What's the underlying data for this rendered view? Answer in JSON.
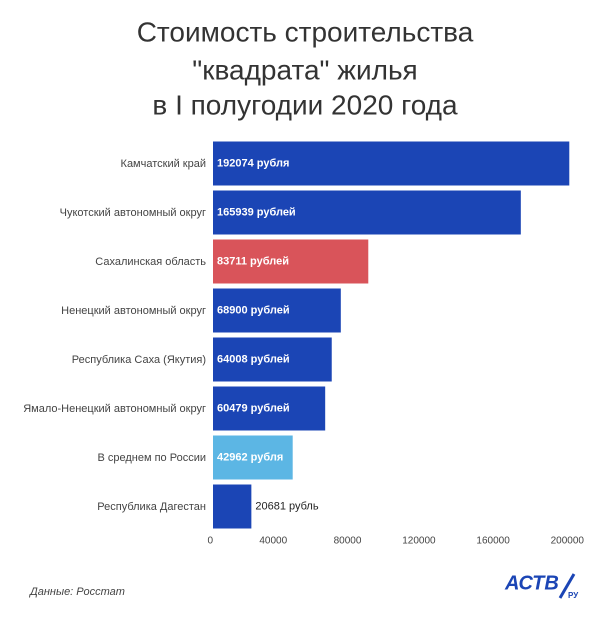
{
  "chart_data": {
    "type": "barh",
    "title": [
      "Стоимость строительства",
      "\"квадрата\" жилья",
      "в I полугодии 2020 года"
    ],
    "categories": [
      "Камчатский край",
      "Чукотский автономный округ",
      "Сахалинская область",
      "Ненецкий автономный округ",
      "Республика Саха (Якутия)",
      "Ямало-Ненецкий автономный округ",
      "В среднем по России",
      "Республика Дагестан"
    ],
    "values": [
      192074,
      165939,
      83711,
      68900,
      64008,
      60479,
      42962,
      20681
    ],
    "value_labels": [
      "192074 рубля",
      "165939 рублей",
      "83711 рублей",
      "68900 рублей",
      "64008 рублей",
      "60479 рублей",
      "42962 рубля",
      "20681 рубль"
    ],
    "colors": [
      "#1b45b5",
      "#1b45b5",
      "#d9545a",
      "#1b45b5",
      "#1b45b5",
      "#1b45b5",
      "#5cb6e4",
      "#1b45b5"
    ],
    "xlim": [
      0,
      200000
    ],
    "xticks": [
      0,
      40000,
      80000,
      120000,
      160000,
      200000
    ],
    "grid": false,
    "source": "Данные: Росстат",
    "logo": {
      "main": "АСТВ",
      "sub": "РУ"
    }
  }
}
